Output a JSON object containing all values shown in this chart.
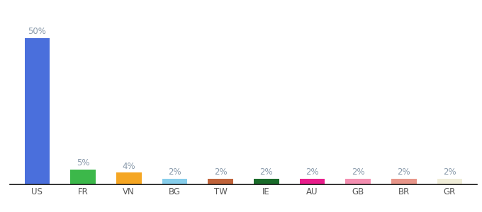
{
  "categories": [
    "US",
    "FR",
    "VN",
    "BG",
    "TW",
    "IE",
    "AU",
    "GB",
    "BR",
    "GR"
  ],
  "values": [
    50,
    5,
    4,
    2,
    2,
    2,
    2,
    2,
    2,
    2
  ],
  "colors": [
    "#4a6fdc",
    "#3cb84a",
    "#f5a623",
    "#87ceeb",
    "#c0633a",
    "#1a6b2a",
    "#e91e8c",
    "#f48fb1",
    "#e8968a",
    "#f0edd8"
  ],
  "label_color": "#8899aa",
  "label_fontsize": 8.5,
  "tick_fontsize": 8.5,
  "tick_color": "#555555",
  "background_color": "#ffffff",
  "ylim": [
    0,
    58
  ],
  "bar_width": 0.55
}
